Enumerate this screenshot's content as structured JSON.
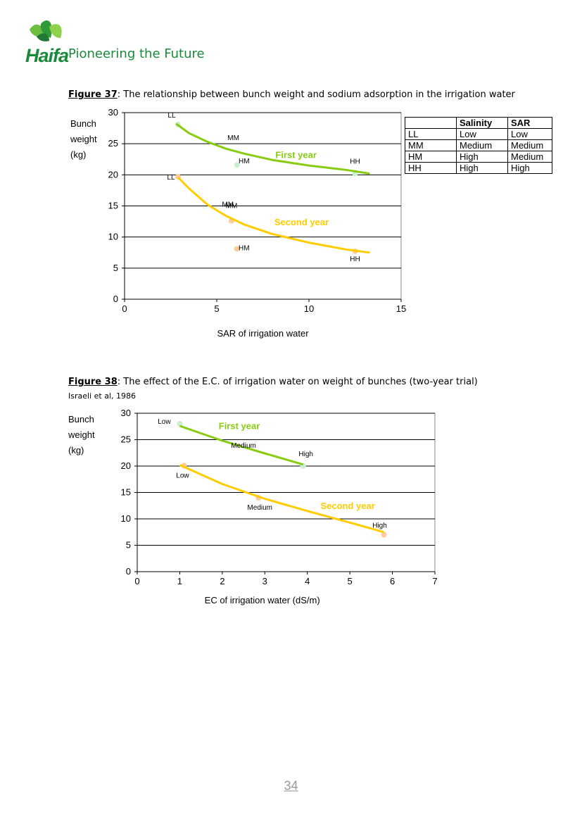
{
  "header": {
    "brand": "Haifa",
    "tagline": "Pioneering the Future"
  },
  "figure37": {
    "label": "Figure 37",
    "caption": ": The relationship between bunch weight and sodium adsorption in the irrigation water",
    "ylabel_lines": [
      "Bunch",
      "weight",
      "(kg)"
    ],
    "legend_table": {
      "headers": [
        "",
        "Salinity",
        "SAR"
      ],
      "rows": [
        [
          "LL",
          "Low",
          "Low"
        ],
        [
          "MM",
          "Medium",
          "Medium"
        ],
        [
          "HM",
          "High",
          "Medium"
        ],
        [
          "HH",
          "High",
          "High"
        ]
      ]
    }
  },
  "figure38": {
    "label": "Figure 38",
    "caption": ": The effect of the E.C. of irrigation water on weight of bunches (two-year trial)",
    "source": "Israeli et al, 1986",
    "ylabel_lines": [
      "Bunch",
      "weight",
      "(kg)"
    ]
  },
  "chart_data": [
    {
      "type": "scatter",
      "xlabel": "SAR of irrigation water",
      "ylabel": "Bunch weight (kg)",
      "xlim": [
        0,
        15
      ],
      "ylim": [
        0,
        30
      ],
      "xticks": [
        0,
        5,
        10,
        15
      ],
      "yticks": [
        0,
        5,
        10,
        15,
        20,
        25,
        30
      ],
      "grid": "horizontal",
      "series": [
        {
          "name": "First year",
          "color": "#88cc11",
          "point_color": "#ccf0cc",
          "points": [
            {
              "x": 2.9,
              "y": 28.1,
              "label": "LL"
            },
            {
              "x": 6.1,
              "y": 21.6,
              "label": "HM"
            },
            {
              "x": 12.5,
              "y": 20.2,
              "label": "HH"
            }
          ],
          "trend": [
            [
              2.8,
              28.2
            ],
            [
              3.5,
              26.7
            ],
            [
              4.5,
              25.3
            ],
            [
              5.5,
              24.2
            ],
            [
              6.5,
              23.4
            ],
            [
              8,
              22.4
            ],
            [
              10,
              21.5
            ],
            [
              12,
              20.8
            ],
            [
              13.3,
              20.2
            ]
          ]
        },
        {
          "name": "Second year",
          "color": "#ffcc00",
          "point_color": "#ffcc99",
          "points": [
            {
              "x": 2.9,
              "y": 19.7,
              "label": "LL"
            },
            {
              "x": 5.8,
              "y": 12.6,
              "label": "MM"
            },
            {
              "x": 6.1,
              "y": 8.1,
              "label": "HM"
            },
            {
              "x": 12.5,
              "y": 7.7,
              "label": "HH"
            }
          ],
          "trend": [
            [
              2.9,
              19.6
            ],
            [
              3.5,
              17.8
            ],
            [
              4.5,
              15.2
            ],
            [
              5.5,
              13.4
            ],
            [
              6.5,
              12.0
            ],
            [
              8,
              10.5
            ],
            [
              10,
              9.1
            ],
            [
              12,
              8.0
            ],
            [
              13.3,
              7.5
            ]
          ]
        }
      ],
      "extra_labels": [
        {
          "text": "MM",
          "x": 5.9,
          "y": 25.6
        },
        {
          "text": "MM",
          "x": 5.6,
          "y": 14.9
        }
      ],
      "series_labels": [
        {
          "text": "First year",
          "x": 9.3,
          "y": 22.7,
          "color": "#88cc11"
        },
        {
          "text": "Second year",
          "x": 9.6,
          "y": 11.9,
          "color": "#ffcc00"
        }
      ]
    },
    {
      "type": "scatter",
      "xlabel": "EC of irrigation water (dS/m)",
      "ylabel": "Bunch weight (kg)",
      "xlim": [
        0,
        7
      ],
      "ylim": [
        0,
        30
      ],
      "xticks": [
        0,
        1,
        2,
        3,
        4,
        5,
        6,
        7
      ],
      "yticks": [
        0,
        5,
        10,
        15,
        20,
        25,
        30
      ],
      "grid": "horizontal",
      "series": [
        {
          "name": "First year",
          "color": "#88cc11",
          "point_color": "#ccf0cc",
          "points": [
            {
              "x": 1.0,
              "y": 28.0,
              "label": "Low"
            },
            {
              "x": 2.5,
              "y": 23.5,
              "label": "Medium"
            },
            {
              "x": 3.9,
              "y": 20.0,
              "label": "High"
            }
          ],
          "trend": [
            [
              1.0,
              27.6
            ],
            [
              2.0,
              24.8
            ],
            [
              3.0,
              22.4
            ],
            [
              3.9,
              20.3
            ]
          ]
        },
        {
          "name": "Second year",
          "color": "#ffcc00",
          "point_color": "#ffcc99",
          "points": [
            {
              "x": 1.1,
              "y": 20.1,
              "label": "Low"
            },
            {
              "x": 2.85,
              "y": 14.0,
              "label": "Medium"
            },
            {
              "x": 5.8,
              "y": 7.0,
              "label": "High"
            }
          ],
          "trend": [
            [
              1.0,
              20.2
            ],
            [
              2.0,
              16.6
            ],
            [
              3.0,
              13.8
            ],
            [
              4.0,
              11.5
            ],
            [
              5.0,
              9.3
            ],
            [
              5.8,
              7.5
            ]
          ]
        }
      ],
      "series_labels": [
        {
          "text": "First year",
          "x": 2.4,
          "y": 27.0,
          "color": "#88cc11"
        },
        {
          "text": "Second year",
          "x": 4.95,
          "y": 11.9,
          "color": "#ffcc00"
        }
      ]
    }
  ],
  "page_number": "34"
}
